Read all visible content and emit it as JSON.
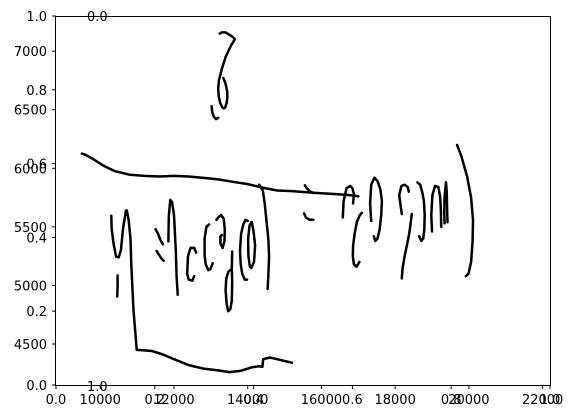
{
  "chart_data": {
    "type": "line",
    "description_overlay": "two overlapping axes sets",
    "axes_primary": {
      "xlim": [
        0.0,
        1.0
      ],
      "ylim": [
        0.0,
        1.0
      ],
      "x_ticks": [
        0.0,
        0.2,
        0.4,
        0.6,
        0.8,
        1.0
      ],
      "y_ticks": [
        0.0,
        0.2,
        0.4,
        0.6,
        0.8,
        1.0
      ],
      "x_tick_labels": [
        "0.0",
        "0.2",
        "0.4",
        "0.6",
        "0.8",
        "1.0"
      ],
      "y_tick_labels": [
        "0.0",
        "0.2",
        "0.4",
        "0.6",
        "0.8",
        "1.0"
      ]
    },
    "axes_secondary": {
      "xlim": [
        8800,
        22200
      ],
      "ylim": [
        4150,
        7300
      ],
      "x_ticks": [
        10000,
        12000,
        14000,
        16000,
        18000,
        20000,
        22000
      ],
      "y_ticks": [
        4500,
        5000,
        5500,
        6000,
        6500,
        7000
      ],
      "x_tick_labels": [
        "10000",
        "12000",
        "14000",
        "16000",
        "18000",
        "20000",
        "22000"
      ],
      "y_tick_labels": [
        "4500",
        "5000",
        "5500",
        "6000",
        "6500",
        "7000"
      ]
    },
    "extra_labels": {
      "top_left": "0.0",
      "bottom_left": "1.0"
    },
    "series": [
      {
        "points": [
          [
            13240,
            7150
          ],
          [
            13300,
            7160
          ],
          [
            13400,
            7160
          ],
          [
            13500,
            7140
          ],
          [
            13600,
            7120
          ],
          [
            13650,
            7100
          ]
        ]
      },
      {
        "points": [
          [
            13650,
            7100
          ],
          [
            13550,
            7050
          ],
          [
            13400,
            6950
          ],
          [
            13300,
            6850
          ],
          [
            13220,
            6750
          ],
          [
            13200,
            6680
          ],
          [
            13210,
            6620
          ],
          [
            13250,
            6560
          ],
          [
            13310,
            6520
          ],
          [
            13350,
            6510
          ],
          [
            13390,
            6520
          ],
          [
            13430,
            6560
          ],
          [
            13450,
            6610
          ],
          [
            13440,
            6660
          ],
          [
            13400,
            6720
          ],
          [
            13340,
            6770
          ]
        ]
      },
      {
        "points": [
          [
            13020,
            6530
          ],
          [
            13040,
            6480
          ],
          [
            13080,
            6440
          ],
          [
            13140,
            6420
          ],
          [
            13200,
            6430
          ]
        ]
      },
      {
        "points": [
          [
            9500,
            6125
          ],
          [
            9600,
            6115
          ],
          [
            9800,
            6080
          ],
          [
            10100,
            6020
          ],
          [
            10400,
            5975
          ],
          [
            10800,
            5945
          ],
          [
            11200,
            5935
          ],
          [
            11600,
            5930
          ],
          [
            12000,
            5935
          ],
          [
            12400,
            5930
          ],
          [
            12800,
            5918
          ],
          [
            13200,
            5905
          ],
          [
            13600,
            5885
          ],
          [
            14000,
            5865
          ],
          [
            14400,
            5835
          ],
          [
            14800,
            5810
          ],
          [
            15200,
            5805
          ],
          [
            15600,
            5795
          ],
          [
            16000,
            5787
          ],
          [
            16400,
            5780
          ],
          [
            16800,
            5770
          ],
          [
            17000,
            5760
          ]
        ]
      },
      {
        "points": [
          [
            10300,
            5595
          ],
          [
            10310,
            5480
          ],
          [
            10360,
            5360
          ],
          [
            10430,
            5245
          ],
          [
            10500,
            5240
          ],
          [
            10560,
            5300
          ],
          [
            10620,
            5490
          ],
          [
            10700,
            5640
          ]
        ]
      },
      {
        "points": [
          [
            10720,
            5640
          ],
          [
            10770,
            5560
          ],
          [
            10820,
            5400
          ],
          [
            10840,
            5200
          ],
          [
            10870,
            5000
          ],
          [
            10900,
            4800
          ],
          [
            10950,
            4600
          ],
          [
            10990,
            4450
          ],
          [
            11200,
            4445
          ],
          [
            11400,
            4440
          ],
          [
            11700,
            4410
          ],
          [
            12000,
            4370
          ],
          [
            12400,
            4320
          ],
          [
            12800,
            4290
          ],
          [
            13200,
            4275
          ],
          [
            13500,
            4260
          ],
          [
            13800,
            4270
          ],
          [
            14100,
            4300
          ],
          [
            14300,
            4310
          ],
          [
            14400,
            4305
          ],
          [
            14420,
            4370
          ],
          [
            14600,
            4385
          ],
          [
            14800,
            4370
          ],
          [
            15000,
            4355
          ],
          [
            15200,
            4340
          ]
        ]
      },
      {
        "points": [
          [
            10470,
            5085
          ],
          [
            10470,
            4990
          ],
          [
            10460,
            4905
          ]
        ]
      },
      {
        "points": [
          [
            11500,
            5480
          ],
          [
            11570,
            5440
          ],
          [
            11630,
            5390
          ],
          [
            11700,
            5350
          ]
        ]
      },
      {
        "points": [
          [
            11530,
            5295
          ],
          [
            11600,
            5260
          ],
          [
            11660,
            5230
          ],
          [
            11720,
            5210
          ]
        ]
      },
      {
        "points": [
          [
            11850,
            5375
          ],
          [
            11860,
            5590
          ],
          [
            11900,
            5730
          ],
          [
            11950,
            5710
          ],
          [
            12000,
            5600
          ],
          [
            12050,
            5300
          ],
          [
            12070,
            5080
          ],
          [
            12100,
            4920
          ]
        ]
      },
      {
        "points": [
          [
            12600,
            5280
          ],
          [
            12550,
            5320
          ],
          [
            12450,
            5320
          ],
          [
            12380,
            5250
          ],
          [
            12360,
            5100
          ],
          [
            12400,
            5050
          ],
          [
            12500,
            5040
          ],
          [
            12550,
            5080
          ]
        ]
      },
      {
        "points": [
          [
            12950,
            5520
          ],
          [
            12880,
            5500
          ],
          [
            12830,
            5400
          ],
          [
            12830,
            5260
          ],
          [
            12860,
            5180
          ],
          [
            12930,
            5130
          ],
          [
            12990,
            5140
          ],
          [
            13050,
            5190
          ]
        ]
      },
      {
        "points": [
          [
            13150,
            5560
          ],
          [
            13200,
            5580
          ],
          [
            13280,
            5600
          ],
          [
            13350,
            5570
          ],
          [
            13380,
            5480
          ],
          [
            13370,
            5380
          ],
          [
            13320,
            5320
          ],
          [
            13260,
            5360
          ],
          [
            13260,
            5420
          ],
          [
            13300,
            5430
          ]
        ]
      },
      {
        "points": [
          [
            13570,
            5140
          ],
          [
            13480,
            5120
          ],
          [
            13420,
            5060
          ],
          [
            13400,
            4960
          ],
          [
            13430,
            4840
          ],
          [
            13470,
            4780
          ],
          [
            13530,
            4800
          ],
          [
            13570,
            4870
          ],
          [
            13580,
            5030
          ],
          [
            13570,
            5150
          ],
          [
            13580,
            5290
          ]
        ]
      },
      {
        "points": [
          [
            14000,
            5550
          ],
          [
            13940,
            5560
          ],
          [
            13880,
            5520
          ],
          [
            13820,
            5440
          ],
          [
            13790,
            5300
          ],
          [
            13810,
            5180
          ],
          [
            13850,
            5100
          ],
          [
            13920,
            5050
          ],
          [
            13980,
            5050
          ]
        ]
      },
      {
        "points": [
          [
            14100,
            5540
          ],
          [
            14050,
            5510
          ],
          [
            14010,
            5400
          ],
          [
            14020,
            5250
          ],
          [
            14060,
            5160
          ],
          [
            14100,
            5150
          ],
          [
            14170,
            5200
          ],
          [
            14200,
            5340
          ],
          [
            14160,
            5460
          ],
          [
            14110,
            5540
          ]
        ]
      },
      {
        "points": [
          [
            14310,
            5860
          ],
          [
            14410,
            5810
          ],
          [
            14460,
            5700
          ],
          [
            14510,
            5550
          ],
          [
            14560,
            5400
          ],
          [
            14580,
            5250
          ],
          [
            14560,
            5080
          ],
          [
            14540,
            4970
          ]
        ]
      },
      {
        "points": [
          [
            15550,
            5855
          ],
          [
            15600,
            5830
          ],
          [
            15700,
            5800
          ],
          [
            15780,
            5790
          ]
        ]
      },
      {
        "points": [
          [
            15530,
            5615
          ],
          [
            15580,
            5580
          ],
          [
            15680,
            5560
          ],
          [
            15780,
            5560
          ]
        ]
      },
      {
        "points": [
          [
            16580,
            5580
          ],
          [
            16600,
            5720
          ],
          [
            16680,
            5830
          ],
          [
            16780,
            5850
          ],
          [
            16840,
            5830
          ],
          [
            16880,
            5780
          ],
          [
            16860,
            5700
          ]
        ]
      },
      {
        "points": [
          [
            17100,
            5620
          ],
          [
            17040,
            5600
          ],
          [
            16960,
            5540
          ],
          [
            16900,
            5440
          ],
          [
            16860,
            5340
          ],
          [
            16850,
            5250
          ],
          [
            16880,
            5180
          ],
          [
            16950,
            5160
          ],
          [
            17030,
            5200
          ]
        ]
      },
      {
        "points": [
          [
            17350,
            5550
          ],
          [
            17320,
            5700
          ],
          [
            17350,
            5860
          ],
          [
            17440,
            5920
          ],
          [
            17520,
            5890
          ],
          [
            17600,
            5820
          ],
          [
            17640,
            5720
          ],
          [
            17620,
            5600
          ],
          [
            17580,
            5480
          ],
          [
            17520,
            5400
          ],
          [
            17460,
            5380
          ],
          [
            17420,
            5420
          ]
        ]
      },
      {
        "points": [
          [
            18180,
            5610
          ],
          [
            18140,
            5700
          ],
          [
            18110,
            5770
          ],
          [
            18170,
            5850
          ],
          [
            18260,
            5860
          ],
          [
            18340,
            5840
          ],
          [
            18370,
            5800
          ]
        ]
      },
      {
        "points": [
          [
            18450,
            5610
          ],
          [
            18420,
            5530
          ],
          [
            18380,
            5440
          ],
          [
            18310,
            5330
          ],
          [
            18250,
            5240
          ],
          [
            18200,
            5140
          ],
          [
            18180,
            5060
          ]
        ]
      },
      {
        "points": [
          [
            18600,
            5880
          ],
          [
            18680,
            5860
          ],
          [
            18740,
            5790
          ],
          [
            18780,
            5720
          ],
          [
            18800,
            5600
          ],
          [
            18790,
            5480
          ],
          [
            18760,
            5400
          ],
          [
            18710,
            5380
          ],
          [
            18650,
            5420
          ]
        ]
      },
      {
        "points": [
          [
            19000,
            5460
          ],
          [
            18980,
            5600
          ],
          [
            19010,
            5770
          ],
          [
            19080,
            5850
          ],
          [
            19170,
            5840
          ],
          [
            19220,
            5760
          ],
          [
            19240,
            5640
          ],
          [
            19250,
            5500
          ]
        ]
      },
      {
        "points": [
          [
            19340,
            5530
          ],
          [
            19330,
            5630
          ],
          [
            19340,
            5760
          ],
          [
            19380,
            5880
          ],
          [
            19400,
            5790
          ],
          [
            19410,
            5640
          ],
          [
            19420,
            5540
          ]
        ]
      },
      {
        "points": [
          [
            19680,
            6200
          ],
          [
            19800,
            6100
          ],
          [
            19950,
            5930
          ],
          [
            20060,
            5750
          ],
          [
            20110,
            5560
          ],
          [
            20100,
            5380
          ],
          [
            20060,
            5200
          ],
          [
            19990,
            5100
          ],
          [
            19920,
            5080
          ]
        ]
      }
    ]
  }
}
